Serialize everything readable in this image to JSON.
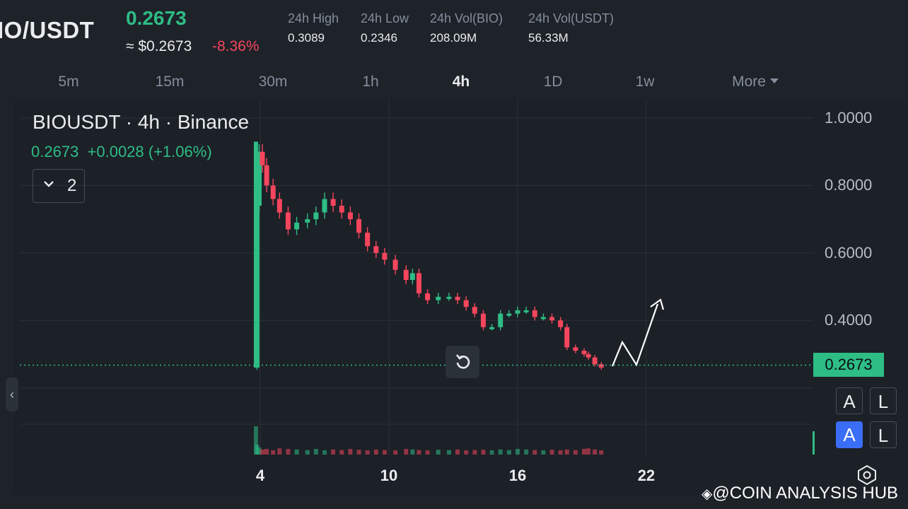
{
  "header": {
    "pair": "IO/USDT",
    "last_price": "0.2673",
    "approx_usd": "≈ $0.2673",
    "change_pct": "-8.36%",
    "stats": [
      {
        "label": "24h High",
        "value": "0.3089"
      },
      {
        "label": "24h Low",
        "value": "0.2346"
      },
      {
        "label": "24h Vol(BIO)",
        "value": "208.09M"
      },
      {
        "label": "24h Vol(USDT)",
        "value": "56.33M"
      }
    ]
  },
  "intervals": {
    "items": [
      "5m",
      "15m",
      "30m",
      "1h",
      "4h",
      "1D",
      "1w"
    ],
    "active": "4h",
    "more_label": "More"
  },
  "chart": {
    "legend_title": "BIOUSDT · 4h · Binance",
    "legend_values": "0.2673  +0.0028 (+1.06%)",
    "collapse_count": "2",
    "current_price_tag": "0.2673",
    "buttons": {
      "auto": "A",
      "log": "L"
    },
    "colors": {
      "up": "#2ebd85",
      "down": "#f6465d",
      "background": "#1e2229"
    }
  },
  "chart_data": {
    "type": "line",
    "title": "",
    "x": [
      "4",
      "10",
      "16",
      "22"
    ],
    "y_ticks": [
      1.0,
      0.8,
      0.6,
      0.4
    ],
    "y_tick_labels": [
      "1.0000",
      "0.8000",
      "0.6000",
      "0.4000"
    ],
    "ylim": [
      0.2,
      1.04
    ],
    "current_price": 0.2673,
    "series": [
      {
        "values": [
          [
            3.8,
            0.26
          ],
          [
            3.85,
            0.74
          ],
          [
            3.95,
            0.9
          ],
          [
            4.1,
            0.86
          ],
          [
            4.3,
            0.8
          ],
          [
            4.6,
            0.76
          ],
          [
            4.9,
            0.72
          ],
          [
            5.3,
            0.67
          ],
          [
            5.7,
            0.69
          ],
          [
            6.2,
            0.7
          ],
          [
            6.6,
            0.72
          ],
          [
            7.0,
            0.76
          ],
          [
            7.4,
            0.74
          ],
          [
            7.8,
            0.72
          ],
          [
            8.2,
            0.7
          ],
          [
            8.6,
            0.66
          ],
          [
            9.0,
            0.62
          ],
          [
            9.4,
            0.6
          ],
          [
            9.8,
            0.58
          ],
          [
            10.3,
            0.55
          ],
          [
            10.8,
            0.52
          ],
          [
            11.1,
            0.54
          ],
          [
            11.4,
            0.48
          ],
          [
            11.8,
            0.46
          ],
          [
            12.3,
            0.47
          ],
          [
            12.8,
            0.47
          ],
          [
            13.2,
            0.46
          ],
          [
            13.6,
            0.44
          ],
          [
            14.0,
            0.42
          ],
          [
            14.4,
            0.38
          ],
          [
            14.8,
            0.38
          ],
          [
            15.2,
            0.42
          ],
          [
            15.6,
            0.42
          ],
          [
            16.0,
            0.43
          ],
          [
            16.4,
            0.43
          ],
          [
            16.8,
            0.41
          ],
          [
            17.2,
            0.41
          ],
          [
            17.6,
            0.4
          ],
          [
            18.0,
            0.38
          ],
          [
            18.3,
            0.32
          ],
          [
            18.7,
            0.31
          ],
          [
            19.1,
            0.3
          ],
          [
            19.3,
            0.29
          ],
          [
            19.6,
            0.27
          ],
          [
            19.9,
            0.26
          ]
        ]
      }
    ],
    "volume_levels": [
      1.0,
      0.35,
      0.25,
      0.18,
      0.2,
      0.15,
      0.22,
      0.2,
      0.18,
      0.16,
      0.2,
      0.15,
      0.18,
      0.16,
      0.2,
      0.17,
      0.15,
      0.18,
      0.16,
      0.15,
      0.2,
      0.18,
      0.16,
      0.15,
      0.17,
      0.16,
      0.18,
      0.15,
      0.16,
      0.17,
      0.15,
      0.18,
      0.16,
      0.2,
      0.18,
      0.16,
      0.15,
      0.17,
      0.15,
      0.18,
      0.16,
      0.2,
      0.22,
      0.18,
      0.15
    ]
  },
  "watermark": "@COIN ANALYSIS HUB"
}
